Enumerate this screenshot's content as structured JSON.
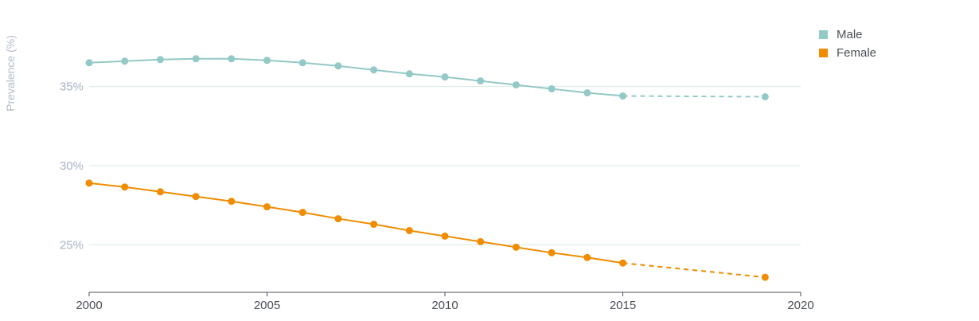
{
  "chart_data": {
    "type": "line",
    "title": "",
    "xlabel": "",
    "ylabel": "Prevalence (%)",
    "xlim": [
      2000,
      2020
    ],
    "ylim": [
      22,
      38.5
    ],
    "x_ticks": [
      "2000",
      "2005",
      "2010",
      "2015",
      "2020"
    ],
    "y_ticks": [
      {
        "value": 25,
        "label": "25%"
      },
      {
        "value": 30,
        "label": "30%"
      },
      {
        "value": 35,
        "label": "35%"
      }
    ],
    "grid": true,
    "legend_position": "top-right",
    "series": [
      {
        "name": "Male",
        "color": "#93c9c6",
        "x": [
          2000,
          2001,
          2002,
          2003,
          2004,
          2005,
          2006,
          2007,
          2008,
          2009,
          2010,
          2011,
          2012,
          2013,
          2014,
          2015
        ],
        "values": [
          36.5,
          36.6,
          36.7,
          36.75,
          36.75,
          36.65,
          36.5,
          36.3,
          36.05,
          35.8,
          35.6,
          35.35,
          35.1,
          34.85,
          34.6,
          34.4
        ],
        "projection": {
          "x": [
            2015,
            2019
          ],
          "values": [
            34.4,
            34.35
          ]
        }
      },
      {
        "name": "Female",
        "color": "#ef8c00",
        "x": [
          2000,
          2001,
          2002,
          2003,
          2004,
          2005,
          2006,
          2007,
          2008,
          2009,
          2010,
          2011,
          2012,
          2013,
          2014,
          2015
        ],
        "values": [
          28.9,
          28.65,
          28.35,
          28.05,
          27.75,
          27.4,
          27.05,
          26.65,
          26.3,
          25.9,
          25.55,
          25.2,
          24.85,
          24.5,
          24.2,
          23.85
        ],
        "projection": {
          "x": [
            2015,
            2019
          ],
          "values": [
            23.85,
            22.95
          ]
        }
      }
    ]
  }
}
